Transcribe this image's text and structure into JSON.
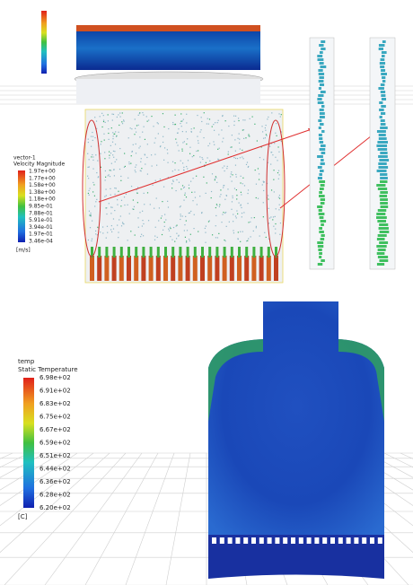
{
  "velocity_legend": {
    "name": "vector-1",
    "title": "Velocity Magnitude",
    "labels": [
      "1.97e+00",
      "1.77e+00",
      "1.58e+00",
      "1.38e+00",
      "1.18e+00",
      "9.85e-01",
      "7.88e-01",
      "5.91e-01",
      "3.94e-01",
      "1.97e-01",
      "3.46e-04"
    ],
    "unit": "[m/s]"
  },
  "temperature_legend": {
    "name": "temp",
    "title": "Static Temperature",
    "labels": [
      "6.98e+02",
      "6.91e+02",
      "6.83e+02",
      "6.75e+02",
      "6.67e+02",
      "6.59e+02",
      "6.51e+02",
      "6.44e+02",
      "6.36e+02",
      "6.28e+02",
      "6.20e+02"
    ],
    "unit": "[C]"
  }
}
